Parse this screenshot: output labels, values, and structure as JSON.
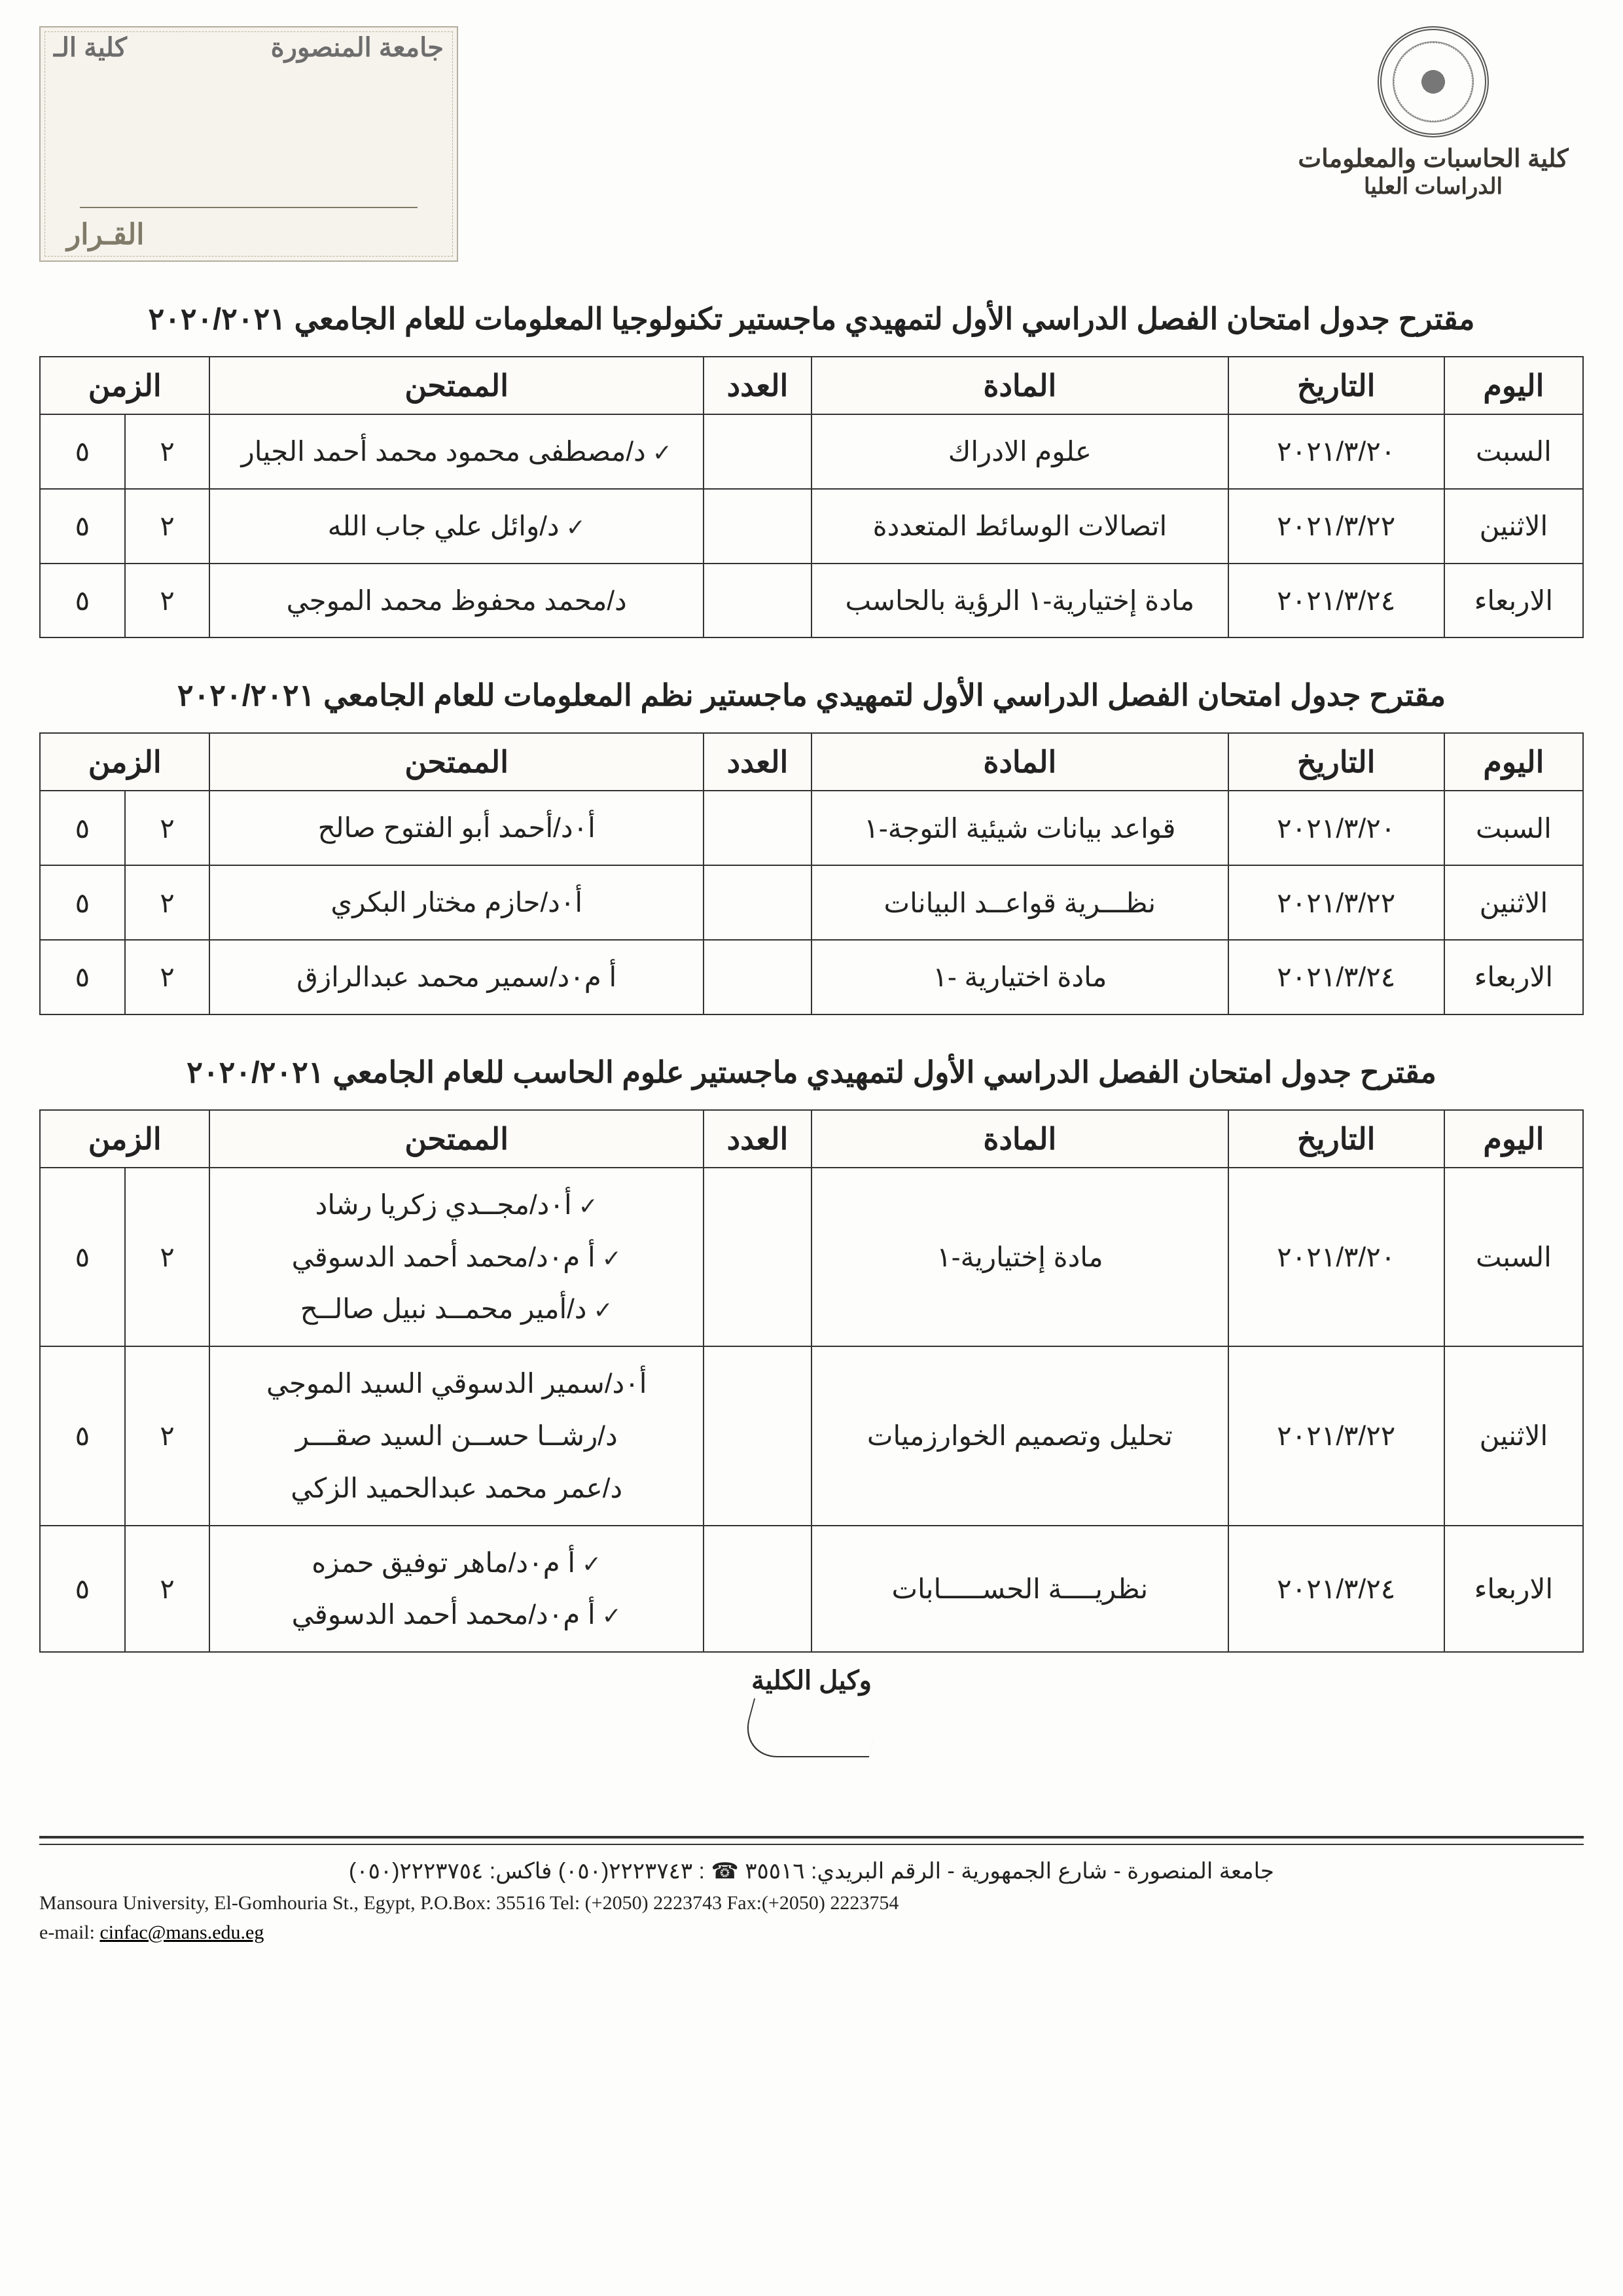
{
  "header": {
    "faculty": "كلية الحاسبات والمعلومات",
    "department": "الدراسات العليا",
    "stamp_univ": "جامعة المنصورة",
    "stamp_fac": "كلية الـ",
    "stamp_word": "القـرار"
  },
  "columns": {
    "day": "اليوم",
    "date": "التاريخ",
    "subject": "المادة",
    "count": "العدد",
    "examiner": "الممتحن",
    "time": "الزمن"
  },
  "tables": [
    {
      "title": "مقترح جدول امتحان الفصل الدراسي الأول  لتمهيدي ماجستير تكنولوجيا المعلومات للعام الجامعي ٢٠٢٠/٢٠٢١",
      "rows": [
        {
          "day": "السبت",
          "date": "٢٠٢١/٣/٢٠",
          "subject": "علوم الادراك",
          "count": "",
          "examiners": [
            "د/مصطفى محمود محمد أحمد الجيار"
          ],
          "tick": true,
          "t1": "٢",
          "t2": "٥"
        },
        {
          "day": "الاثنين",
          "date": "٢٠٢١/٣/٢٢",
          "subject": "اتصالات الوسائط المتعددة",
          "count": "",
          "examiners": [
            "د/وائل علي جاب الله"
          ],
          "tick": true,
          "t1": "٢",
          "t2": "٥"
        },
        {
          "day": "الاربعاء",
          "date": "٢٠٢١/٣/٢٤",
          "subject": "مادة إختيارية-١ الرؤية بالحاسب",
          "count": "",
          "examiners": [
            "د/محمد محفوظ محمد الموجي"
          ],
          "tick": false,
          "t1": "٢",
          "t2": "٥"
        }
      ]
    },
    {
      "title": "مقترح جدول امتحان الفصل الدراسي الأول  لتمهيدي ماجستير نظم المعلومات للعام الجامعي ٢٠٢٠/٢٠٢١",
      "rows": [
        {
          "day": "السبت",
          "date": "٢٠٢١/٣/٢٠",
          "subject": "قواعد بيانات شيئية التوجة-١",
          "count": "",
          "examiners": [
            "أ٠د/أحمد أبو الفتوح صالح"
          ],
          "tick": false,
          "t1": "٢",
          "t2": "٥"
        },
        {
          "day": "الاثنين",
          "date": "٢٠٢١/٣/٢٢",
          "subject": "نظـــرية قواعــد البيانات",
          "count": "",
          "examiners": [
            "أ٠د/حازم مختار البكري"
          ],
          "tick": false,
          "t1": "٢",
          "t2": "٥"
        },
        {
          "day": "الاربعاء",
          "date": "٢٠٢١/٣/٢٤",
          "subject": "مادة اختيارية -١",
          "count": "",
          "examiners": [
            "أ م٠د/سمير محمد عبدالرازق"
          ],
          "tick": false,
          "t1": "٢",
          "t2": "٥"
        }
      ]
    },
    {
      "title": "مقترح جدول امتحان الفصل الدراسي الأول  لتمهيدي ماجستير علوم الحاسب للعام الجامعي ٢٠٢٠/٢٠٢١",
      "rows": [
        {
          "day": "السبت",
          "date": "٢٠٢١/٣/٢٠",
          "subject": "مادة إختيارية-١",
          "count": "",
          "examiners": [
            "أ٠د/مجــدي زكريا رشاد",
            "أ م٠د/محمد أحمد الدسوقي",
            "د/أمير محمــد نبيل صالــح"
          ],
          "tick": true,
          "t1": "٢",
          "t2": "٥"
        },
        {
          "day": "الاثنين",
          "date": "٢٠٢١/٣/٢٢",
          "subject": "تحليل وتصميم الخوارزميات",
          "count": "",
          "examiners": [
            "أ٠د/سمير الدسوقي السيد الموجي",
            "د/رشــا حســن السيد صقـــر",
            "د/عمر محمد عبدالحميد الزكي"
          ],
          "tick": false,
          "t1": "٢",
          "t2": "٥"
        },
        {
          "day": "الاربعاء",
          "date": "٢٠٢١/٣/٢٤",
          "subject": "نظريــــة الحســـــابات",
          "count": "",
          "examiners": [
            "أ م٠د/ماهر توفيق حمزه",
            "أ م٠د/محمد أحمد الدسوقي"
          ],
          "tick": true,
          "t1": "٢",
          "t2": "٥"
        }
      ]
    }
  ],
  "dean": "وكيل الكلية",
  "footer": {
    "ar": "جامعة المنصورة - شارع الجمهورية  -  الرقم البريدي: ٣٥٥١٦    ☎ : ٢٢٢٣٧٤٣(٠٥٠)    فاكس: ٢٢٢٣٧٥٤(٠٥٠)",
    "en1": "Mansoura University, El-Gomhouria St., Egypt,   P.O.Box: 35516   Tel: (+2050) 2223743    Fax:(+2050) 2223754",
    "en2_label": "e-mail: ",
    "en2_mail": "cinfac@mans.edu.eg"
  }
}
